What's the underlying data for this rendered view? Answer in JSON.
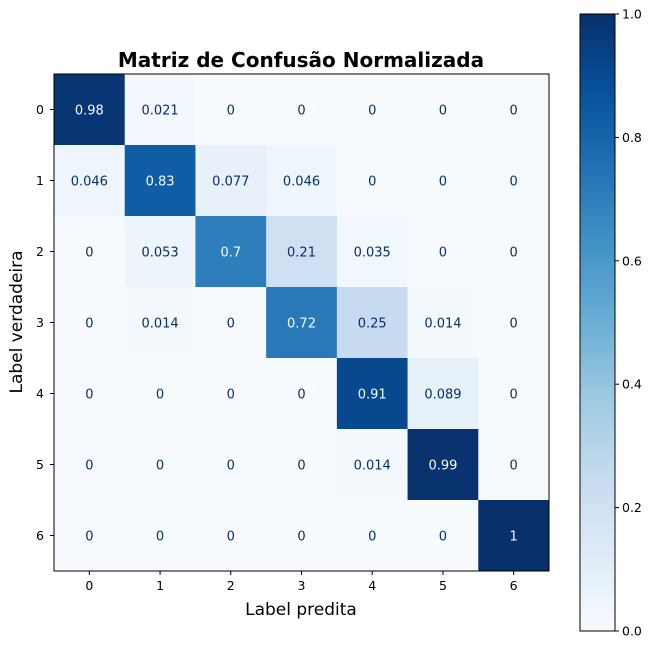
{
  "chart_data": {
    "type": "heatmap",
    "title": "Matriz de Confusão Normalizada",
    "xlabel": "Label predita",
    "ylabel": "Label verdadeira",
    "x_categories": [
      "0",
      "1",
      "2",
      "3",
      "4",
      "5",
      "6"
    ],
    "y_categories": [
      "0",
      "1",
      "2",
      "3",
      "4",
      "5",
      "6"
    ],
    "values": [
      [
        0.98,
        0.021,
        0,
        0,
        0,
        0,
        0
      ],
      [
        0.046,
        0.83,
        0.077,
        0.046,
        0,
        0,
        0
      ],
      [
        0,
        0.053,
        0.7,
        0.21,
        0.035,
        0,
        0
      ],
      [
        0,
        0.014,
        0,
        0.72,
        0.25,
        0.014,
        0
      ],
      [
        0,
        0,
        0,
        0,
        0.91,
        0.089,
        0
      ],
      [
        0,
        0,
        0,
        0,
        0.014,
        0.99,
        0
      ],
      [
        0,
        0,
        0,
        0,
        0,
        0,
        1
      ]
    ],
    "colormap": "Blues",
    "vmin": 0,
    "vmax": 1,
    "colorbar_ticks": [
      "0.0",
      "0.2",
      "0.4",
      "0.6",
      "0.8",
      "1.0"
    ],
    "colorbar_tick_values": [
      0,
      0.2,
      0.4,
      0.6,
      0.8,
      1.0
    ],
    "grid": false
  }
}
